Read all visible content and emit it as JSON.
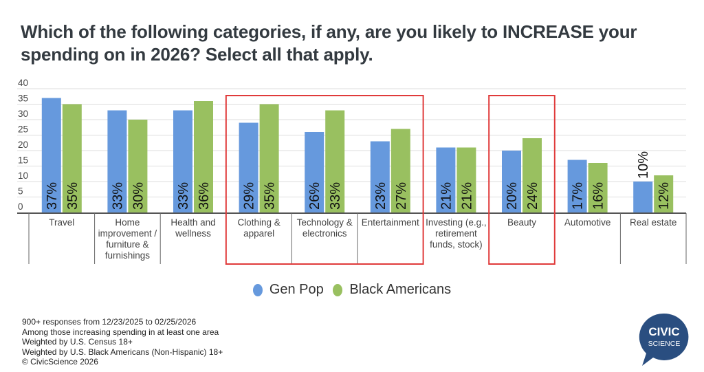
{
  "title": "Which of the following categories, if any, are you likely to INCREASE your spending on in 2026? Select all that apply.",
  "colors": {
    "gen_pop": "#6699dd",
    "black_americans": "#99c060",
    "highlight": "#e03a3a",
    "logo_bg": "#2a4e80",
    "grid": "#dddddd",
    "axis": "#555555"
  },
  "chart_data": {
    "type": "bar",
    "title": "Which of the following categories, if any, are you likely to INCREASE your spending on in 2026? Select all that apply.",
    "xlabel": "",
    "ylabel": "",
    "ylim": [
      0,
      40
    ],
    "yticks": [
      0,
      5,
      10,
      15,
      20,
      25,
      30,
      35,
      40
    ],
    "grid": true,
    "legend_position": "bottom",
    "categories": [
      "Travel",
      "Home improvement / furniture & furnishings",
      "Health and wellness",
      "Clothing & apparel",
      "Technology & electronics",
      "Entertainment",
      "Investing (e.g., retirement funds, stock)",
      "Beauty",
      "Automotive",
      "Real estate"
    ],
    "category_label_lines": [
      [
        "Travel"
      ],
      [
        "Home",
        "improvement /",
        "furniture &",
        "furnishings"
      ],
      [
        "Health and",
        "wellness"
      ],
      [
        "Clothing &",
        "apparel"
      ],
      [
        "Technology &",
        "electronics"
      ],
      [
        "Entertainment"
      ],
      [
        "Investing (e.g.,",
        "retirement",
        "funds, stock)"
      ],
      [
        "Beauty"
      ],
      [
        "Automotive"
      ],
      [
        "Real estate"
      ]
    ],
    "series": [
      {
        "name": "Gen Pop",
        "values": [
          37,
          33,
          33,
          29,
          26,
          23,
          21,
          20,
          17,
          10
        ],
        "labels": [
          "37%",
          "33%",
          "33%",
          "29%",
          "26%",
          "23%",
          "21%",
          "20%",
          "17%",
          "10%"
        ]
      },
      {
        "name": "Black Americans",
        "values": [
          35,
          30,
          36,
          35,
          33,
          27,
          21,
          24,
          16,
          12
        ],
        "labels": [
          "35%",
          "30%",
          "36%",
          "35%",
          "33%",
          "27%",
          "21%",
          "24%",
          "16%",
          "12%"
        ]
      }
    ],
    "highlight_groups": [
      [
        "Clothing & apparel",
        "Technology & electronics",
        "Entertainment"
      ],
      [
        "Beauty"
      ]
    ]
  },
  "legend": [
    {
      "label": "Gen Pop",
      "color": "#6699dd"
    },
    {
      "label": "Black Americans",
      "color": "#99c060"
    }
  ],
  "footnotes": [
    "900+ responses from 12/23/2025 to 02/25/2026",
    "Among those increasing spending in at least one area",
    "Weighted by U.S. Census 18+",
    "Weighted by U.S. Black Americans (Non-Hispanic) 18+",
    "© CivicScience 2026"
  ],
  "logo": {
    "line1": "CIVIC",
    "line2": "SCIENCE"
  }
}
